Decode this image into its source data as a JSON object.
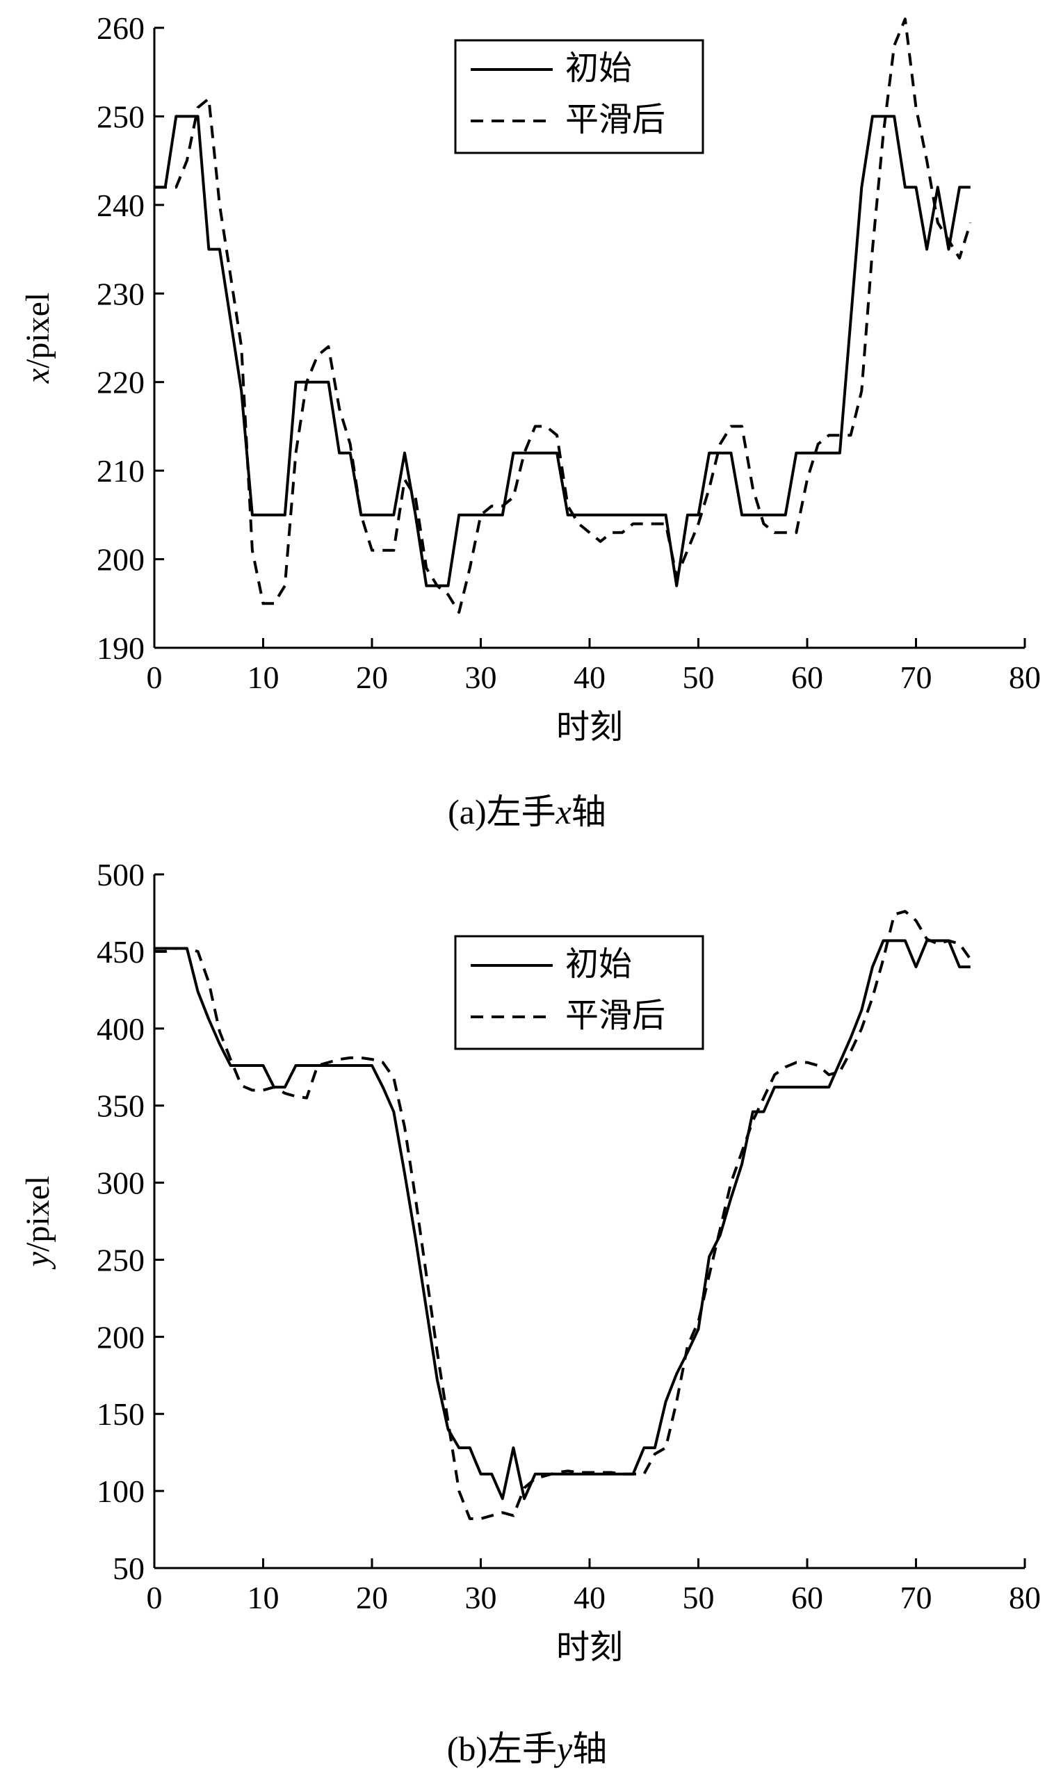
{
  "chart_data": [
    {
      "type": "line",
      "caption_prefix": "(a)左手",
      "caption_var": "x",
      "caption_suffix": "轴",
      "xlabel": "时刻",
      "ylabel_var": "x",
      "ylabel_unit": "/pixel",
      "xlim": [
        0,
        80
      ],
      "ylim": [
        190,
        260
      ],
      "xticks": [
        0,
        10,
        20,
        30,
        40,
        50,
        60,
        70,
        80
      ],
      "yticks": [
        190,
        200,
        210,
        220,
        230,
        240,
        250,
        260
      ],
      "legend": "top-center",
      "grid": false,
      "series": [
        {
          "name": "初始",
          "style": "solid",
          "x": [
            0,
            1,
            2,
            3,
            4,
            5,
            6,
            7,
            8,
            9,
            10,
            11,
            12,
            13,
            14,
            15,
            16,
            17,
            18,
            19,
            20,
            21,
            22,
            23,
            24,
            25,
            26,
            27,
            28,
            29,
            30,
            31,
            32,
            33,
            34,
            35,
            36,
            37,
            38,
            39,
            40,
            41,
            42,
            43,
            44,
            45,
            46,
            47,
            48,
            49,
            50,
            51,
            52,
            53,
            54,
            55,
            56,
            57,
            58,
            59,
            60,
            61,
            62,
            63,
            64,
            65,
            66,
            67,
            68,
            69,
            70,
            71,
            72,
            73,
            74,
            75
          ],
          "values": [
            242,
            242,
            250,
            250,
            250,
            235,
            235,
            227,
            219,
            205,
            205,
            205,
            205,
            220,
            220,
            220,
            220,
            212,
            212,
            205,
            205,
            205,
            205,
            212,
            205,
            197,
            197,
            197,
            205,
            205,
            205,
            205,
            205,
            212,
            212,
            212,
            212,
            212,
            205,
            205,
            205,
            205,
            205,
            205,
            205,
            205,
            205,
            205,
            197,
            205,
            205,
            212,
            212,
            212,
            205,
            205,
            205,
            205,
            205,
            212,
            212,
            212,
            212,
            212,
            227,
            242,
            250,
            250,
            250,
            242,
            242,
            235,
            242,
            235,
            242,
            242
          ]
        },
        {
          "name": "平滑后",
          "style": "dashed",
          "x": [
            0,
            1,
            2,
            3,
            4,
            5,
            6,
            7,
            8,
            9,
            10,
            11,
            12,
            13,
            14,
            15,
            16,
            17,
            18,
            19,
            20,
            21,
            22,
            23,
            24,
            25,
            26,
            27,
            28,
            29,
            30,
            31,
            32,
            33,
            34,
            35,
            36,
            37,
            38,
            39,
            40,
            41,
            42,
            43,
            44,
            45,
            46,
            47,
            48,
            49,
            50,
            51,
            52,
            53,
            54,
            55,
            56,
            57,
            58,
            59,
            60,
            61,
            62,
            63,
            64,
            65,
            66,
            67,
            68,
            69,
            70,
            71,
            72,
            73,
            74,
            75
          ],
          "values": [
            242,
            242,
            242,
            245,
            251,
            252,
            240,
            232,
            224,
            201,
            195,
            195,
            197,
            212,
            220,
            223,
            224,
            217,
            213,
            205,
            201,
            201,
            201,
            209,
            207,
            199,
            197,
            196,
            194,
            199,
            205,
            206,
            206,
            207,
            212,
            215,
            215,
            214,
            206,
            204,
            203,
            202,
            203,
            203,
            204,
            204,
            204,
            204,
            198,
            201,
            204,
            208,
            213,
            215,
            215,
            208,
            204,
            203,
            203,
            203,
            209,
            213,
            214,
            214,
            214,
            219,
            235,
            248,
            258,
            261,
            251,
            245,
            238,
            236,
            234,
            238
          ]
        }
      ]
    },
    {
      "type": "line",
      "caption_prefix": "(b)左手",
      "caption_var": "y",
      "caption_suffix": "轴",
      "xlabel": "时刻",
      "ylabel_var": "y",
      "ylabel_unit": "/pixel",
      "xlim": [
        0,
        80
      ],
      "ylim": [
        50,
        500
      ],
      "xticks": [
        0,
        10,
        20,
        30,
        40,
        50,
        60,
        70,
        80
      ],
      "yticks": [
        50,
        100,
        150,
        200,
        250,
        300,
        350,
        400,
        450,
        500
      ],
      "legend": "top-center",
      "grid": false,
      "series": [
        {
          "name": "初始",
          "style": "solid",
          "x": [
            0,
            1,
            2,
            3,
            4,
            5,
            6,
            7,
            8,
            9,
            10,
            11,
            12,
            13,
            14,
            15,
            16,
            17,
            18,
            19,
            20,
            21,
            22,
            23,
            24,
            25,
            26,
            27,
            28,
            29,
            30,
            31,
            32,
            33,
            34,
            35,
            36,
            37,
            38,
            39,
            40,
            41,
            42,
            43,
            44,
            45,
            46,
            47,
            48,
            49,
            50,
            51,
            52,
            53,
            54,
            55,
            56,
            57,
            58,
            59,
            60,
            61,
            62,
            63,
            64,
            65,
            66,
            67,
            68,
            69,
            70,
            71,
            72,
            73,
            74,
            75
          ],
          "values": [
            452,
            452,
            452,
            452,
            424,
            406,
            390,
            376,
            376,
            376,
            376,
            362,
            362,
            376,
            376,
            376,
            376,
            376,
            376,
            376,
            376,
            362,
            346,
            306,
            264,
            218,
            172,
            140,
            128,
            128,
            111,
            111,
            95,
            128,
            95,
            111,
            111,
            111,
            111,
            111,
            111,
            111,
            111,
            111,
            111,
            128,
            128,
            158,
            176,
            190,
            205,
            252,
            266,
            290,
            312,
            346,
            346,
            362,
            362,
            362,
            362,
            362,
            362,
            378,
            394,
            412,
            440,
            457,
            457,
            457,
            440,
            457,
            457,
            457,
            440,
            440
          ]
        },
        {
          "name": "平滑后",
          "style": "dashed",
          "x": [
            0,
            1,
            2,
            3,
            4,
            5,
            6,
            7,
            8,
            9,
            10,
            11,
            12,
            13,
            14,
            15,
            16,
            17,
            18,
            19,
            20,
            21,
            22,
            23,
            24,
            25,
            26,
            27,
            28,
            29,
            30,
            31,
            32,
            33,
            34,
            35,
            36,
            37,
            38,
            39,
            40,
            41,
            42,
            43,
            44,
            45,
            46,
            47,
            48,
            49,
            50,
            51,
            52,
            53,
            54,
            55,
            56,
            57,
            58,
            59,
            60,
            61,
            62,
            63,
            64,
            65,
            66,
            67,
            68,
            69,
            70,
            71,
            72,
            73,
            74,
            75
          ],
          "values": [
            450,
            450,
            452,
            452,
            450,
            430,
            398,
            380,
            363,
            360,
            360,
            362,
            358,
            356,
            355,
            376,
            378,
            380,
            381,
            381,
            380,
            378,
            368,
            336,
            290,
            240,
            190,
            145,
            100,
            82,
            82,
            84,
            86,
            84,
            102,
            108,
            110,
            112,
            113,
            112,
            112,
            112,
            112,
            111,
            111,
            111,
            124,
            128,
            158,
            194,
            210,
            240,
            270,
            300,
            320,
            340,
            355,
            370,
            375,
            378,
            378,
            376,
            370,
            372,
            385,
            400,
            420,
            445,
            474,
            476,
            470,
            458,
            455,
            457,
            455,
            445
          ]
        }
      ]
    }
  ]
}
